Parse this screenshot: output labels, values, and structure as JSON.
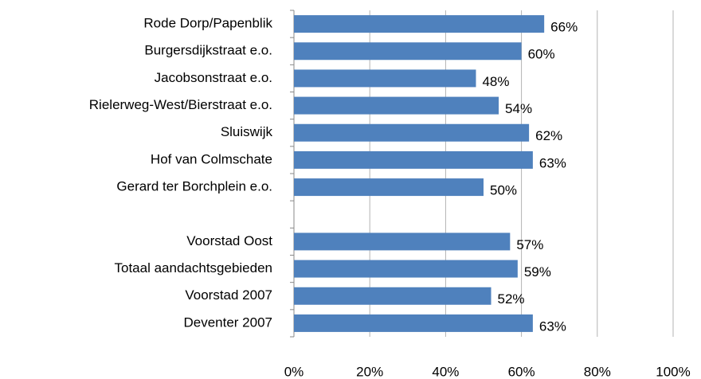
{
  "chart_data": {
    "type": "bar",
    "orientation": "horizontal",
    "categories": [
      "Rode Dorp/Papenblik",
      "Burgersdijkstraat e.o.",
      "Jacobsonstraat e.o.",
      "Rielerweg-West/Bierstraat e.o.",
      "Sluiswijk",
      "Hof van Colmschate",
      "Gerard ter Borchplein e.o.",
      null,
      "Voorstad Oost",
      "Totaal aandachtsgebieden",
      "Voorstad 2007",
      "Deventer 2007"
    ],
    "values": [
      66,
      60,
      48,
      54,
      62,
      63,
      50,
      null,
      57,
      59,
      52,
      63
    ],
    "value_labels": [
      "66%",
      "60%",
      "48%",
      "54%",
      "62%",
      "63%",
      "50%",
      null,
      "57%",
      "59%",
      "52%",
      "63%"
    ],
    "color": "#4f81bd",
    "xlim": [
      0,
      100
    ],
    "xticks": [
      {
        "value": 0,
        "label": "0%"
      },
      {
        "value": 20,
        "label": "20%"
      },
      {
        "value": 40,
        "label": "40%"
      },
      {
        "value": 60,
        "label": "60%"
      },
      {
        "value": 80,
        "label": "80%"
      },
      {
        "value": 100,
        "label": "100%"
      }
    ],
    "grid": true
  }
}
